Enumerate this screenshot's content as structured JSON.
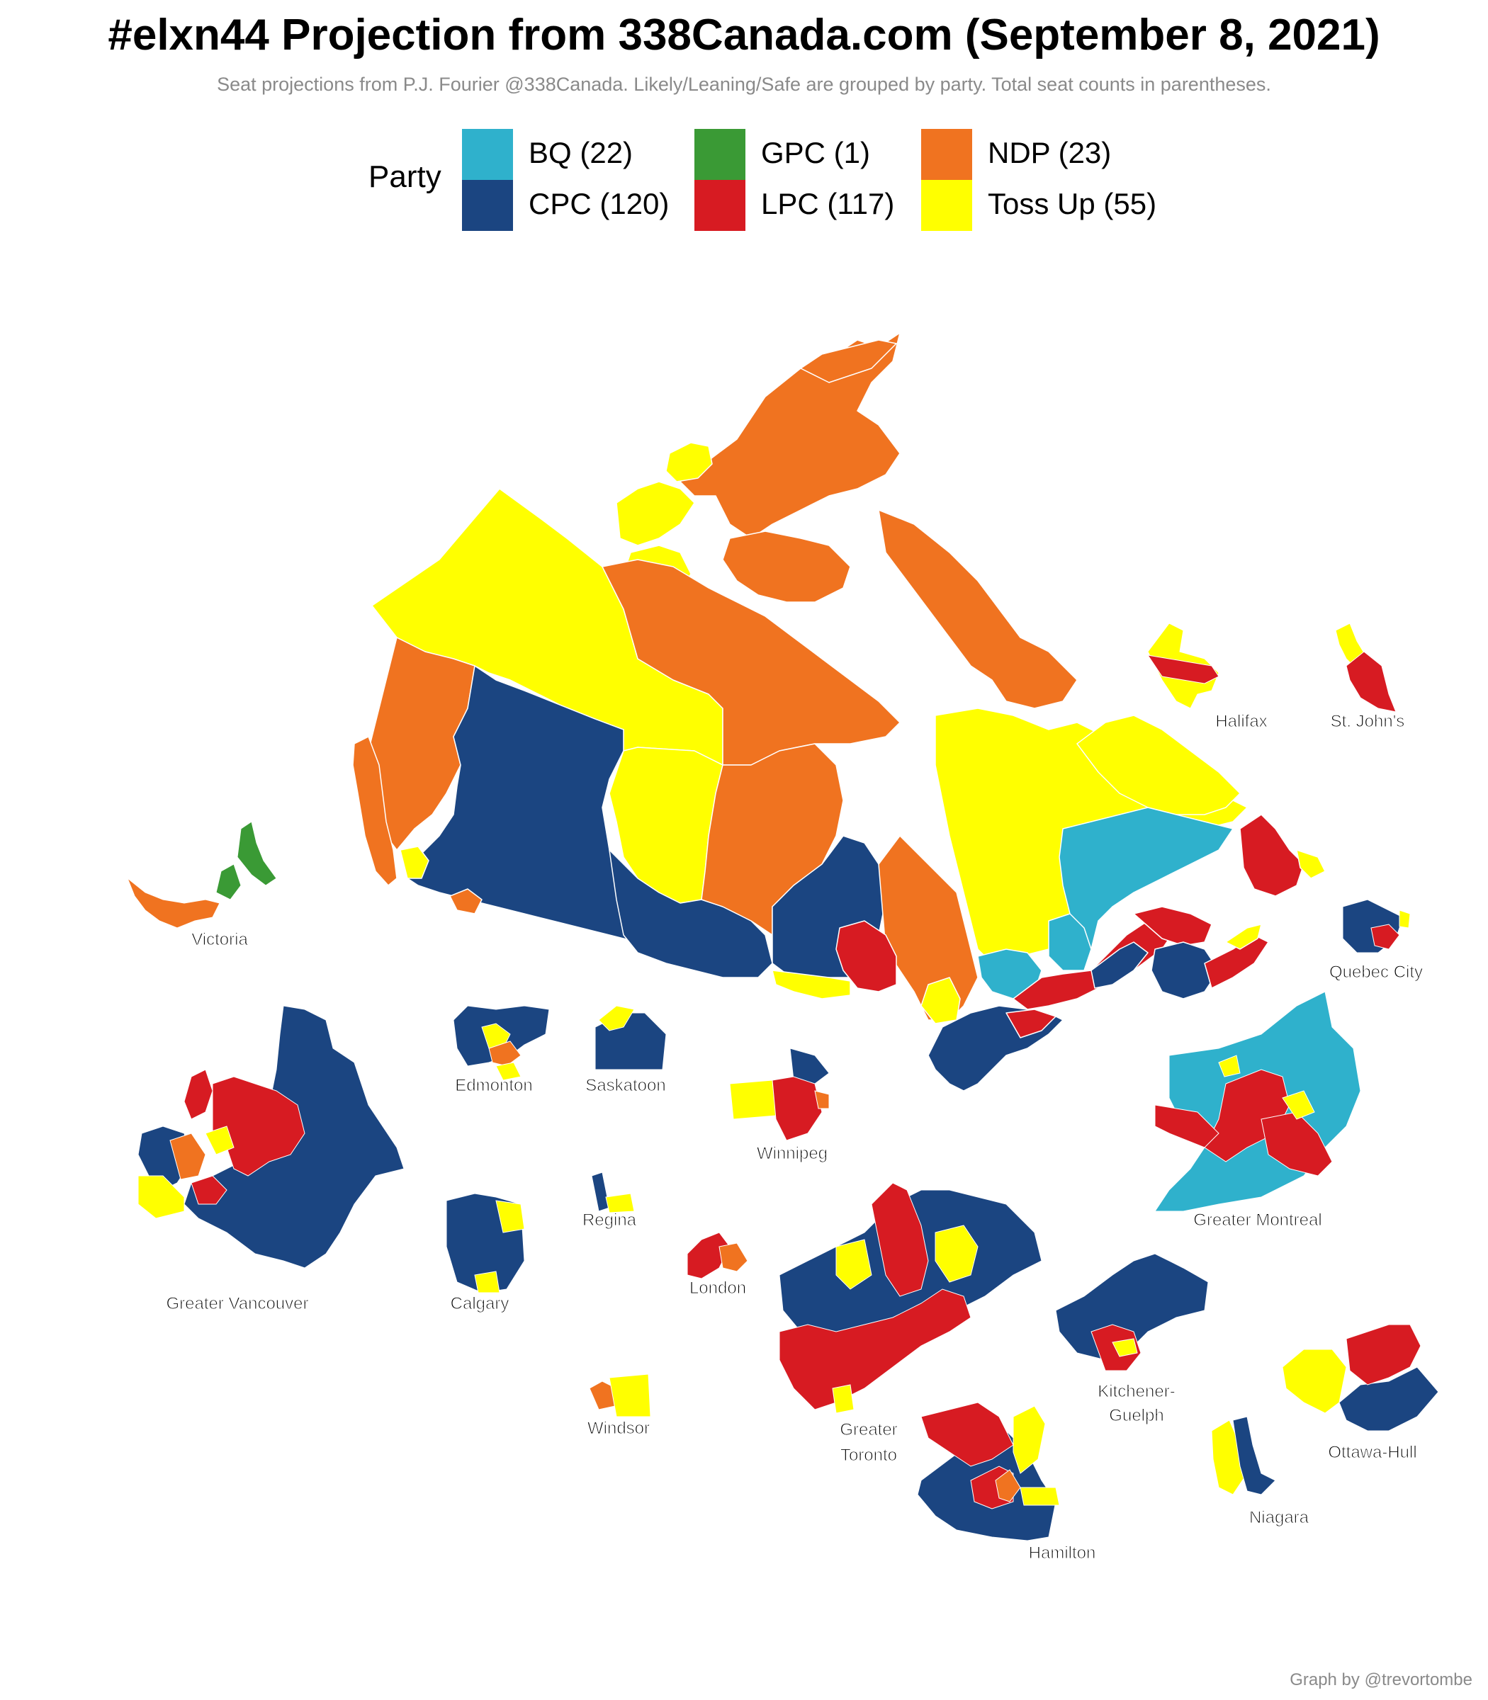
{
  "title": "#elxn44 Projection from 338Canada.com (September 8, 2021)",
  "subtitle": "Seat projections from P.J. Fourier @338Canada. Likely/Leaning/Safe are grouped by party. Total seat counts in parentheses.",
  "legend": {
    "title": "Party",
    "items": [
      {
        "label": "BQ (22)",
        "color": "#2fb1cc"
      },
      {
        "label": "CPC (120)",
        "color": "#1b4581"
      },
      {
        "label": "GPC (1)",
        "color": "#3a9a35"
      },
      {
        "label": "LPC (117)",
        "color": "#d71b22"
      },
      {
        "label": "NDP (23)",
        "color": "#f07320"
      },
      {
        "label": "Toss Up (55)",
        "color": "#ffff00"
      }
    ]
  },
  "insets": {
    "halifax": "Halifax",
    "st_johns": "St. John's",
    "victoria": "Victoria",
    "quebec_city": "Quebec City",
    "edmonton": "Edmonton",
    "saskatoon": "Saskatoon",
    "winnipeg": "Winnipeg",
    "greater_vancouver": "Greater Vancouver",
    "calgary": "Calgary",
    "regina": "Regina",
    "london": "London",
    "greater_montreal": "Greater Montreal",
    "windsor": "Windsor",
    "greater_toronto_1": "Greater",
    "greater_toronto_2": "Toronto",
    "kitchener_guelph_1": "Kitchener-",
    "kitchener_guelph_2": "Guelph",
    "ottawa_hull": "Ottawa-Hull",
    "niagara": "Niagara",
    "hamilton": "Hamilton"
  },
  "caption": "Graph by @trevortombe"
}
